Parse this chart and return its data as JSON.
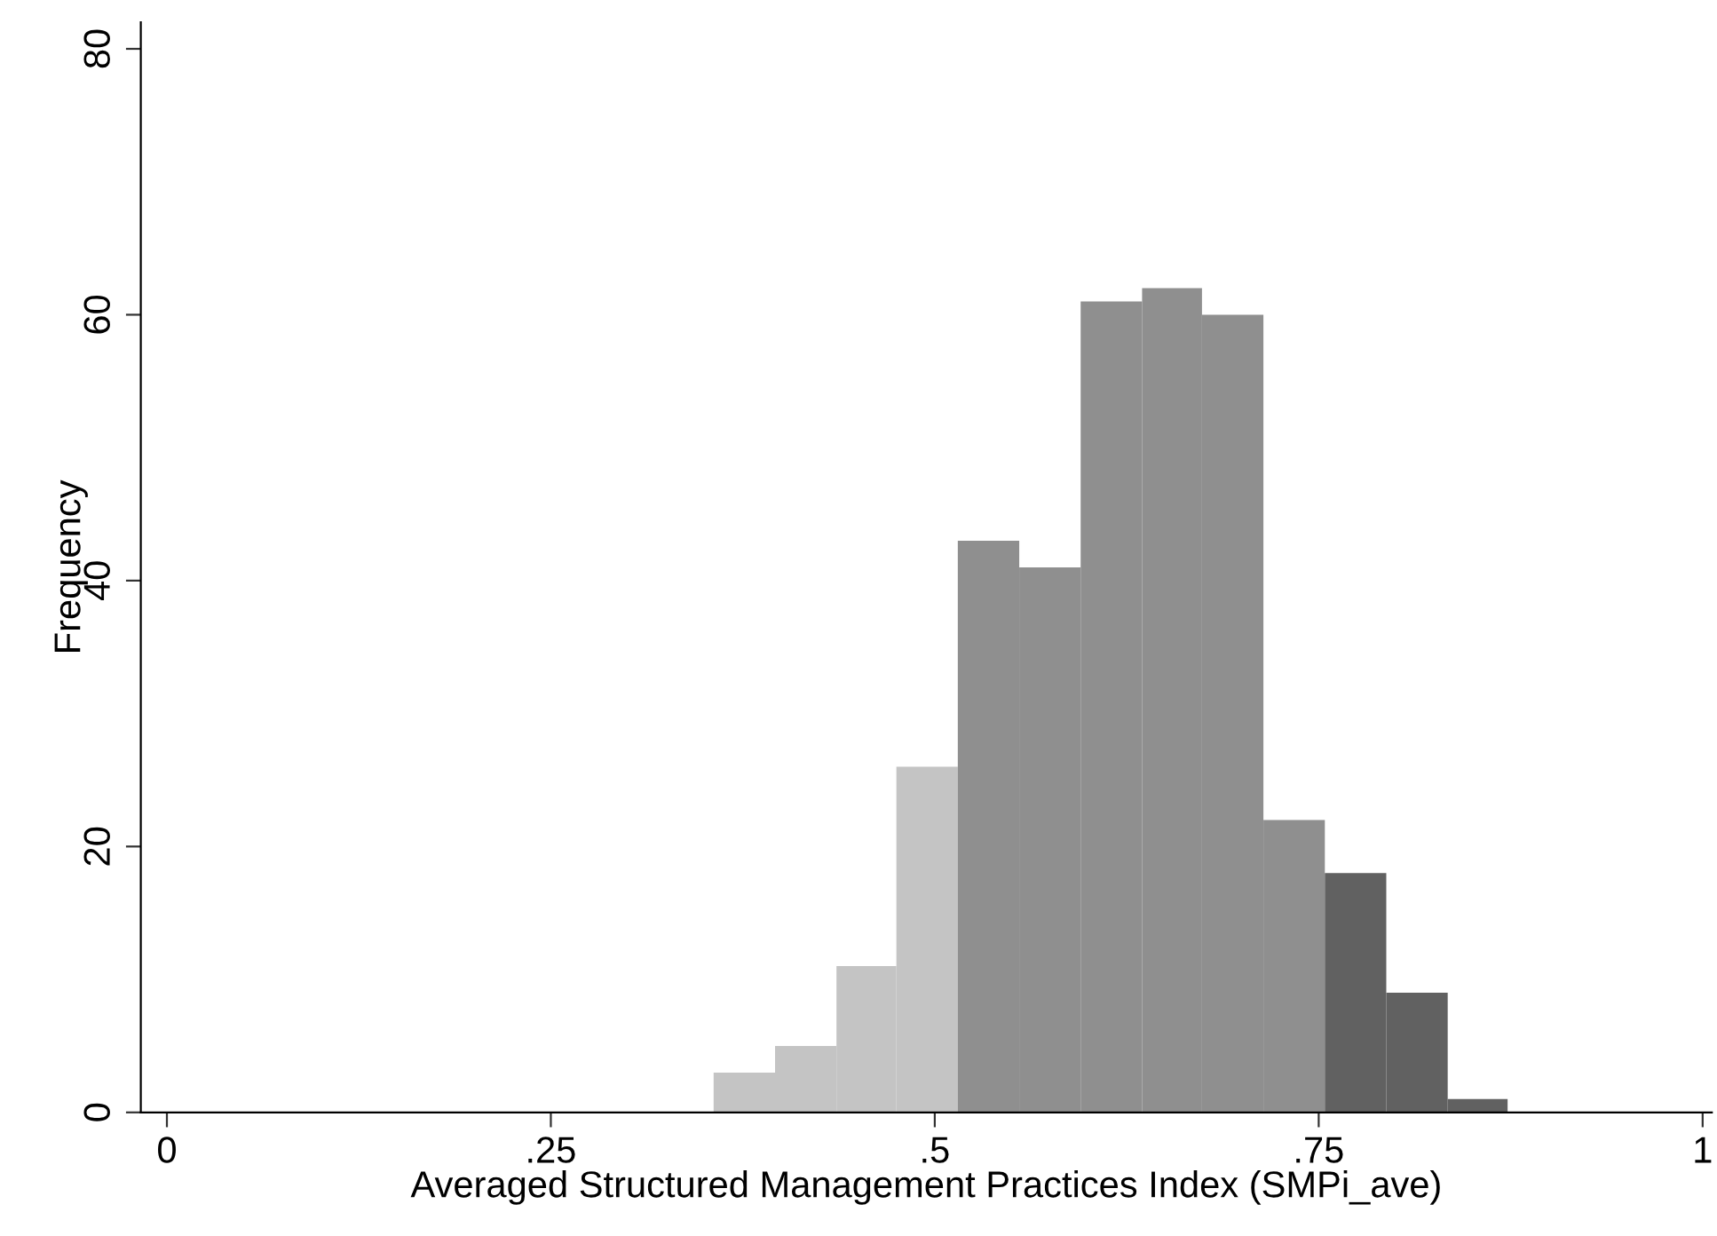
{
  "chart_data": {
    "type": "histogram",
    "xlabel": "Averaged Structured Management Practices Index (SMPi_ave)",
    "ylabel": "Frequency",
    "bins": [
      0.356,
      0.396,
      0.436,
      0.475,
      0.515,
      0.555,
      0.595,
      0.635,
      0.674,
      0.714,
      0.754,
      0.794,
      0.834,
      0.873
    ],
    "values": [
      3,
      5,
      11,
      26,
      43,
      41,
      61,
      62,
      60,
      22,
      18,
      9,
      1
    ],
    "colors": [
      "#c4c4c4",
      "#c4c4c4",
      "#c4c4c4",
      "#c4c4c4",
      "#8f8f8f",
      "#8f8f8f",
      "#8f8f8f",
      "#8f8f8f",
      "#8f8f8f",
      "#8f8f8f",
      "#616161",
      "#616161",
      "#616161"
    ],
    "xlim": [
      -0.017,
      1.006
    ],
    "ylim": [
      0,
      82
    ],
    "xticks": [
      0,
      {
        "value": 0.25,
        "label": ".25"
      },
      {
        "value": 0.5,
        "label": ".5"
      },
      {
        "value": 0.75,
        "label": ".75"
      },
      1
    ],
    "yticks": [
      0,
      20,
      40,
      60,
      80
    ],
    "grid": false,
    "legend": false
  }
}
